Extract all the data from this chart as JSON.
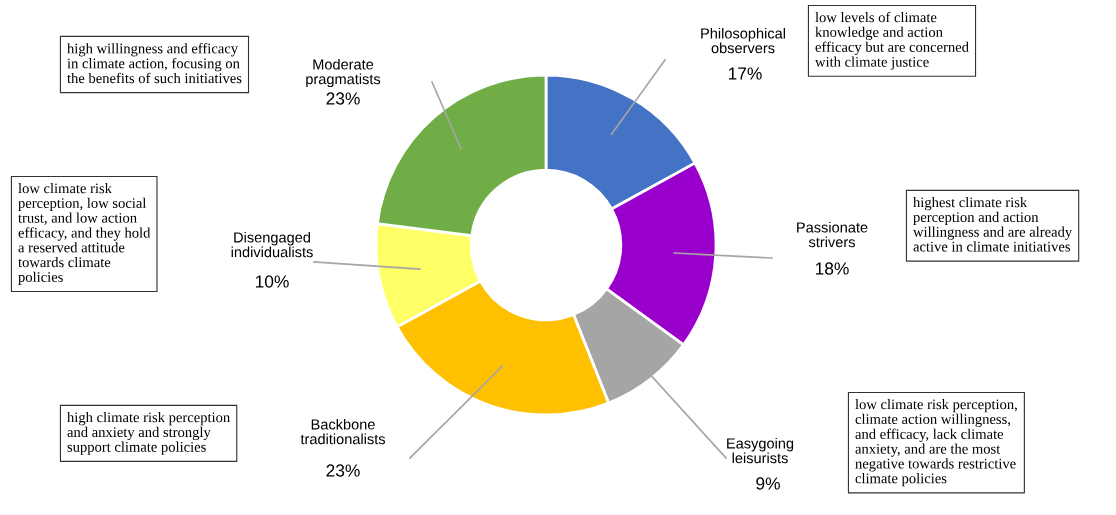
{
  "chart_data": {
    "type": "donut",
    "categories": [
      "Philosophical\nobservers",
      "Passionate\nstrivers",
      "Easygoing\nleisurists",
      "Backbone\ntraditionalists",
      "Disengaged\nindividualists",
      "Moderate\npragmatists"
    ],
    "values": [
      17,
      18,
      9,
      23,
      10,
      23
    ],
    "colors": [
      "#4472c4",
      "#9900cc",
      "#a5a5a5",
      "#ffc000",
      "#ffff66",
      "#70ad47"
    ],
    "value_labels": [
      "17%",
      "18%",
      "9%",
      "23%",
      "10%",
      "23%"
    ],
    "annotations": [
      "low levels of climate\nknowledge and action\nefficacy but are concerned\nwith climate justice",
      "highest climate risk\nperception and action\nwillingness and are already\nactive in climate initiatives",
      "low climate risk perception,\nclimate action willingness,\nand efficacy, lack climate\nanxiety, and are the most\nnegative towards restrictive\nclimate policies",
      "high climate risk perception\nand anxiety and strongly\nsupport climate policies",
      "low climate risk\nperception, low social\ntrust, and low action\nefficacy, and they hold\na reserved attitude\ntowards climate\npolicies",
      "high willingness and efficacy\nin climate action, focusing on\nthe benefits of such initiatives"
    ]
  }
}
